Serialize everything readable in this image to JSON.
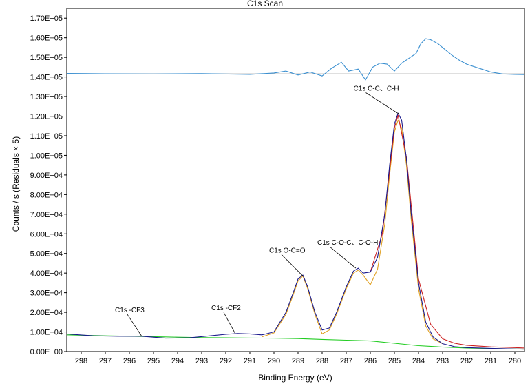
{
  "chart_data": {
    "type": "line",
    "title": "C1s Scan",
    "xlabel": "Binding Energy (eV)",
    "ylabel": "Counts / s  (Residuals × 5)",
    "xlim": [
      298.6,
      279.6
    ],
    "x_reversed": true,
    "ylim": [
      0,
      175000
    ],
    "x_ticks": [
      298,
      297,
      296,
      295,
      294,
      293,
      292,
      291,
      290,
      289,
      288,
      287,
      286,
      285,
      284,
      283,
      282,
      281,
      280
    ],
    "y_ticks": [
      0,
      10000,
      20000,
      30000,
      40000,
      50000,
      60000,
      70000,
      80000,
      90000,
      100000,
      110000,
      120000,
      130000,
      140000,
      150000,
      160000,
      170000
    ],
    "y_tick_labels": [
      "0.00E+00",
      "1.00E+04",
      "2.00E+04",
      "3.00E+04",
      "4.00E+04",
      "5.00E+04",
      "6.00E+04",
      "7.00E+04",
      "8.00E+04",
      "9.00E+04",
      "1.00E+05",
      "1.10E+05",
      "1.20E+05",
      "1.30E+05",
      "1.40E+05",
      "1.50E+05",
      "1.60E+05",
      "1.70E+05"
    ],
    "grid": false,
    "residual_baseline": 141500,
    "series": [
      {
        "color": "#1a1a8c",
        "x": [
          298.6,
          297.5,
          296.5,
          295.5,
          294.5,
          293.5,
          292.5,
          292.0,
          291.5,
          291.0,
          290.5,
          290.0,
          289.5,
          289.2,
          289.0,
          288.8,
          288.6,
          288.3,
          288.0,
          287.7,
          287.4,
          287.0,
          286.7,
          286.5,
          286.3,
          286.0,
          285.7,
          285.4,
          285.2,
          285.0,
          284.85,
          284.7,
          284.5,
          284.3,
          284.0,
          283.7,
          283.4,
          283.0,
          282.5,
          282.0,
          281.0,
          280.0,
          279.6
        ],
        "y": [
          9000,
          8000,
          7800,
          7800,
          6800,
          7000,
          8200,
          8800,
          9200,
          9000,
          8500,
          10000,
          20000,
          30000,
          37000,
          39000,
          33000,
          20000,
          11000,
          12000,
          20000,
          33000,
          41000,
          42500,
          40000,
          40500,
          48000,
          70000,
          95000,
          116000,
          121500,
          118000,
          98000,
          70000,
          35000,
          15000,
          7500,
          4000,
          2500,
          2000,
          1600,
          1300,
          1200
        ]
      },
      {
        "color": "#cc2222",
        "x": [
          286.0,
          285.5,
          285.0,
          284.85,
          284.5,
          284.0,
          283.5,
          283.0,
          282.5,
          282.0,
          281.0,
          280.0,
          279.6
        ],
        "y": [
          40500,
          60000,
          114000,
          120500,
          99000,
          37000,
          14000,
          6500,
          4200,
          3200,
          2400,
          2000,
          1800
        ]
      },
      {
        "color": "#e0a020",
        "x": [
          290.5,
          290.0,
          289.5,
          289.2,
          289.0,
          288.8,
          288.6,
          288.3,
          288.0,
          287.7,
          287.4,
          287.0,
          286.7,
          286.5,
          286.3,
          286.0,
          285.7,
          285.4,
          285.2,
          285.0,
          284.85,
          284.7,
          284.5,
          284.3,
          284.0,
          283.7,
          283.4,
          283.0
        ],
        "y": [
          7500,
          9500,
          19000,
          29000,
          36000,
          38500,
          32000,
          19000,
          9000,
          11000,
          19000,
          32000,
          40000,
          41500,
          39000,
          34000,
          42000,
          65000,
          90000,
          112000,
          118000,
          114000,
          95000,
          67000,
          32000,
          13000,
          6500,
          4000
        ]
      },
      {
        "color": "#22cc22",
        "x": [
          298.6,
          297.0,
          296.0,
          295.0,
          294.0,
          293.0,
          292.0,
          291.0,
          290.0,
          289.0,
          288.0,
          287.0,
          286.0,
          285.0,
          284.0,
          283.0,
          282.0,
          281.0,
          280.0,
          279.6
        ],
        "y": [
          8500,
          8000,
          7800,
          7600,
          7300,
          7100,
          7000,
          6900,
          6800,
          6600,
          6200,
          5800,
          5400,
          4200,
          3000,
          2300,
          1800,
          1500,
          1300,
          1200
        ]
      },
      {
        "color": "#3a8fd0",
        "x": [
          298.6,
          297.0,
          295.0,
          293.0,
          291.0,
          290.0,
          289.5,
          289.0,
          288.5,
          288.0,
          287.6,
          287.2,
          286.9,
          286.5,
          286.2,
          285.9,
          285.6,
          285.3,
          285.0,
          284.7,
          284.4,
          284.1,
          283.9,
          283.7,
          283.5,
          283.2,
          282.9,
          282.6,
          282.3,
          282.0,
          281.5,
          281.0,
          280.5,
          280.0,
          279.6
        ],
        "y": [
          141800,
          141600,
          141500,
          141700,
          141300,
          142000,
          143000,
          141000,
          142500,
          140500,
          144500,
          147500,
          143000,
          144000,
          138500,
          145000,
          147000,
          146500,
          143000,
          147000,
          149500,
          152000,
          157000,
          159500,
          159000,
          157000,
          154000,
          151000,
          148500,
          146500,
          144500,
          142500,
          141500,
          141300,
          141200
        ]
      }
    ],
    "annotations": [
      {
        "text": "C1s C-C、C-H",
        "x": 284.8,
        "y": 121000,
        "label_x": 286.7,
        "label_y": 133000
      },
      {
        "text": "C1s C-O-C、C-O-H",
        "x": 286.6,
        "y": 42500,
        "label_x": 288.2,
        "label_y": 54500
      },
      {
        "text": "C1s O-C=O",
        "x": 288.8,
        "y": 38500,
        "label_x": 290.2,
        "label_y": 50500
      },
      {
        "text": "C1s -CF2",
        "x": 291.6,
        "y": 9000,
        "label_x": 292.6,
        "label_y": 21000
      },
      {
        "text": "C1s -CF3",
        "x": 295.5,
        "y": 8000,
        "label_x": 296.6,
        "label_y": 20000
      }
    ]
  }
}
